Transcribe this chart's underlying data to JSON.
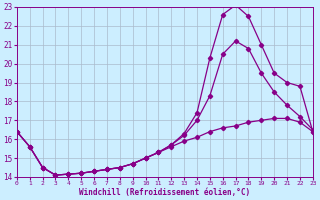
{
  "xlabel": "Windchill (Refroidissement éolien,°C)",
  "bg_color": "#cceeff",
  "line_color": "#880088",
  "grid_color": "#aabbcc",
  "xlim": [
    0,
    23
  ],
  "ylim": [
    14,
    23
  ],
  "yticks": [
    14,
    15,
    16,
    17,
    18,
    19,
    20,
    21,
    22,
    23
  ],
  "xticks": [
    0,
    1,
    2,
    3,
    4,
    5,
    6,
    7,
    8,
    9,
    10,
    11,
    12,
    13,
    14,
    15,
    16,
    17,
    18,
    19,
    20,
    21,
    22,
    23
  ],
  "series1_x": [
    0,
    1,
    2,
    3,
    4,
    5,
    6,
    7,
    8,
    9,
    10,
    11,
    12,
    13,
    14,
    15,
    16,
    17,
    18,
    19,
    20,
    21,
    22,
    23
  ],
  "series1_y": [
    16.4,
    15.6,
    14.5,
    14.1,
    14.15,
    14.2,
    14.3,
    14.4,
    14.5,
    14.7,
    15.0,
    15.3,
    15.7,
    16.3,
    17.4,
    20.3,
    22.6,
    23.1,
    22.5,
    21.0,
    19.5,
    19.0,
    18.8,
    16.4
  ],
  "series2_x": [
    0,
    1,
    2,
    3,
    4,
    5,
    6,
    7,
    8,
    9,
    10,
    11,
    12,
    13,
    14,
    15,
    16,
    17,
    18,
    19,
    20,
    21,
    22,
    23
  ],
  "series2_y": [
    16.4,
    15.6,
    14.5,
    14.1,
    14.15,
    14.2,
    14.3,
    14.4,
    14.5,
    14.7,
    15.0,
    15.3,
    15.7,
    16.2,
    17.0,
    18.3,
    20.5,
    21.2,
    20.8,
    19.5,
    18.5,
    17.8,
    17.2,
    16.5
  ],
  "series3_x": [
    0,
    1,
    2,
    3,
    4,
    5,
    6,
    7,
    8,
    9,
    10,
    11,
    12,
    13,
    14,
    15,
    16,
    17,
    18,
    19,
    20,
    21,
    22,
    23
  ],
  "series3_y": [
    16.4,
    15.6,
    14.5,
    14.1,
    14.15,
    14.2,
    14.3,
    14.4,
    14.5,
    14.7,
    15.0,
    15.3,
    15.6,
    15.9,
    16.1,
    16.4,
    16.6,
    16.7,
    16.9,
    17.0,
    17.1,
    17.1,
    16.9,
    16.4
  ]
}
